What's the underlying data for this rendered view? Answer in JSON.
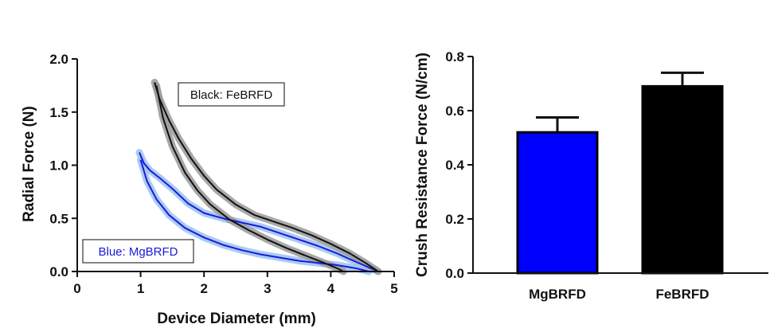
{
  "chart_data": [
    {
      "type": "line",
      "xlabel": "Device Diameter (mm)",
      "ylabel": "Radial Force (N)",
      "xlim": [
        0,
        5
      ],
      "ylim": [
        0,
        2.0
      ],
      "x_ticks": [
        "0",
        "1",
        "2",
        "3",
        "4",
        "5"
      ],
      "y_ticks": [
        "0.0",
        "0.5",
        "1.0",
        "1.5",
        "2.0"
      ],
      "series": [
        {
          "name": "Black: FeBRFD",
          "color": "#111111",
          "band_color": "#9a9a9a",
          "legend_box": "top-right",
          "segments": [
            {
              "x": [
                1.22,
                1.3,
                1.45,
                1.6,
                1.8,
                2.0,
                2.2,
                2.5,
                2.8,
                3.1,
                3.4,
                3.7,
                4.0,
                4.3,
                4.55,
                4.75
              ],
              "y": [
                1.78,
                1.62,
                1.42,
                1.25,
                1.06,
                0.9,
                0.77,
                0.63,
                0.53,
                0.47,
                0.41,
                0.34,
                0.26,
                0.17,
                0.08,
                0.0
              ]
            },
            {
              "x": [
                1.25,
                1.35,
                1.5,
                1.7,
                1.9,
                2.1,
                2.4,
                2.7,
                3.0,
                3.3,
                3.6,
                3.9,
                4.1,
                4.2
              ],
              "y": [
                1.75,
                1.45,
                1.18,
                0.93,
                0.76,
                0.63,
                0.49,
                0.39,
                0.3,
                0.22,
                0.15,
                0.08,
                0.03,
                0.0
              ]
            }
          ]
        },
        {
          "name": "Blue: MgBRFD",
          "color": "#1a1adc",
          "band_color": "#9cc2f0",
          "legend_box": "bottom-left",
          "segments": [
            {
              "x": [
                0.98,
                1.05,
                1.15,
                1.3,
                1.5,
                1.75,
                2.0,
                2.3,
                2.6,
                2.9,
                3.2,
                3.5,
                3.8,
                4.1,
                4.4,
                4.75
              ],
              "y": [
                1.12,
                1.02,
                0.95,
                0.88,
                0.78,
                0.64,
                0.55,
                0.5,
                0.46,
                0.42,
                0.36,
                0.3,
                0.24,
                0.17,
                0.09,
                0.0
              ]
            },
            {
              "x": [
                1.0,
                1.1,
                1.25,
                1.45,
                1.7,
                2.0,
                2.3,
                2.6,
                2.9,
                3.2,
                3.5,
                3.8,
                4.1,
                4.4,
                4.6
              ],
              "y": [
                1.05,
                0.85,
                0.68,
                0.53,
                0.41,
                0.32,
                0.25,
                0.2,
                0.16,
                0.13,
                0.1,
                0.08,
                0.06,
                0.03,
                0.0
              ]
            }
          ]
        }
      ]
    },
    {
      "type": "bar",
      "ylabel": "Crush Resistance Force (N/cm)",
      "ylim": [
        0,
        0.8
      ],
      "y_ticks": [
        "0.0",
        "0.2",
        "0.4",
        "0.6",
        "0.8"
      ],
      "categories": [
        "MgBRFD",
        "FeBRFD"
      ],
      "values": [
        0.52,
        0.69
      ],
      "errors": [
        0.055,
        0.05
      ],
      "colors": [
        "#0000ff",
        "#000000"
      ]
    }
  ]
}
